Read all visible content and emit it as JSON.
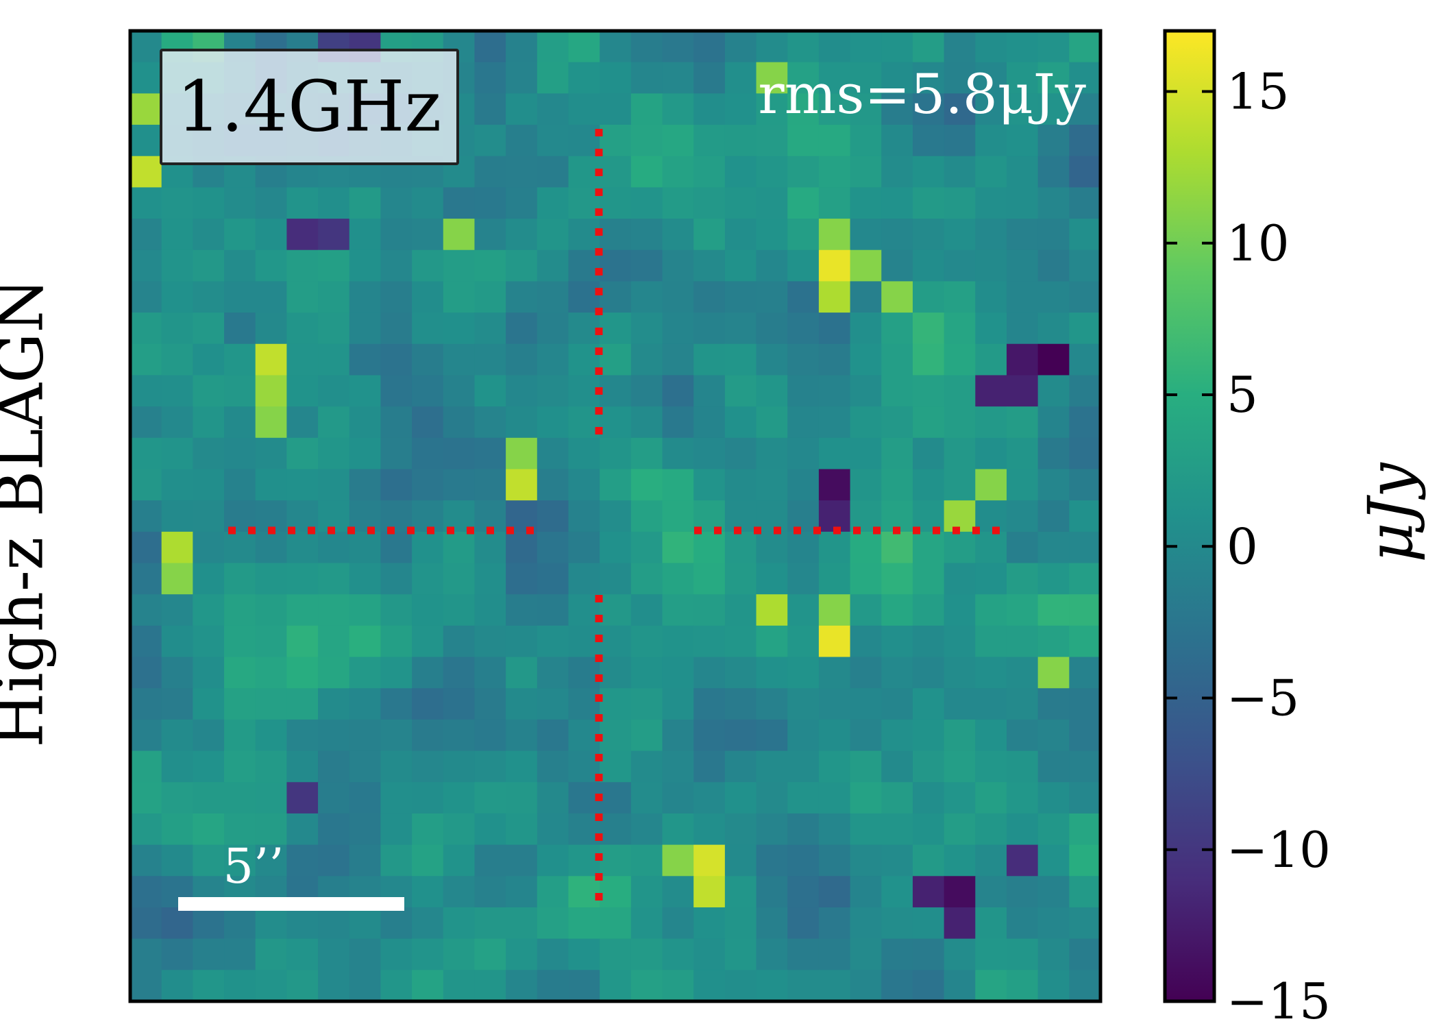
{
  "chart_data": {
    "type": "heatmap",
    "row_label": "High-z BLAGN",
    "band_label": "1.4GHz",
    "rms_label": "rms=5.8μJy",
    "scalebar_label": "5’’",
    "scalebar_arcsec": 5,
    "grid_rows": 31,
    "grid_cols": 31,
    "colorbar": {
      "label": "μJy",
      "colormap": "viridis",
      "vmin": -15,
      "vmax": 17,
      "ticks": [
        -15,
        -10,
        -5,
        0,
        5,
        10,
        15
      ],
      "tick_labels": [
        "−15",
        "−10",
        "−5",
        "0",
        "5",
        "10",
        "15"
      ]
    },
    "crosshair_color": "#ee1111",
    "hotspots": [
      {
        "row": 7,
        "col": 22,
        "value": 16
      },
      {
        "row": 8,
        "col": 22,
        "value": 13
      },
      {
        "row": 7,
        "col": 23,
        "value": 11
      },
      {
        "row": 6,
        "col": 22,
        "value": 11
      },
      {
        "row": 8,
        "col": 24,
        "value": 11
      },
      {
        "row": 10,
        "col": 4,
        "value": 14
      },
      {
        "row": 11,
        "col": 4,
        "value": 12
      },
      {
        "row": 12,
        "col": 4,
        "value": 11
      },
      {
        "row": 14,
        "col": 12,
        "value": 14
      },
      {
        "row": 13,
        "col": 12,
        "value": 11
      },
      {
        "row": 15,
        "col": 26,
        "value": 12
      },
      {
        "row": 14,
        "col": 27,
        "value": 11
      },
      {
        "row": 19,
        "col": 22,
        "value": 16
      },
      {
        "row": 18,
        "col": 20,
        "value": 13
      },
      {
        "row": 18,
        "col": 22,
        "value": 11
      },
      {
        "row": 26,
        "col": 18,
        "value": 15
      },
      {
        "row": 27,
        "col": 18,
        "value": 14
      },
      {
        "row": 26,
        "col": 17,
        "value": 11
      },
      {
        "row": 16,
        "col": 1,
        "value": 13
      },
      {
        "row": 17,
        "col": 1,
        "value": 11
      },
      {
        "row": 4,
        "col": 0,
        "value": 14
      },
      {
        "row": 2,
        "col": 0,
        "value": 12
      },
      {
        "row": 6,
        "col": 10,
        "value": 11
      },
      {
        "row": 20,
        "col": 29,
        "value": 11
      },
      {
        "row": 1,
        "col": 20,
        "value": 11
      },
      {
        "row": 10,
        "col": 29,
        "value": -15
      },
      {
        "row": 10,
        "col": 28,
        "value": -13
      },
      {
        "row": 11,
        "col": 28,
        "value": -12
      },
      {
        "row": 11,
        "col": 27,
        "value": -12
      },
      {
        "row": 14,
        "col": 22,
        "value": -14
      },
      {
        "row": 15,
        "col": 22,
        "value": -12
      },
      {
        "row": 27,
        "col": 26,
        "value": -14
      },
      {
        "row": 28,
        "col": 26,
        "value": -12
      },
      {
        "row": 27,
        "col": 25,
        "value": -12
      },
      {
        "row": 26,
        "col": 28,
        "value": -11
      },
      {
        "row": 6,
        "col": 5,
        "value": -11
      },
      {
        "row": 6,
        "col": 6,
        "value": -10
      },
      {
        "row": 24,
        "col": 5,
        "value": -10
      },
      {
        "row": 0,
        "col": 7,
        "value": -10
      },
      {
        "row": 0,
        "col": 6,
        "value": -9
      }
    ]
  }
}
